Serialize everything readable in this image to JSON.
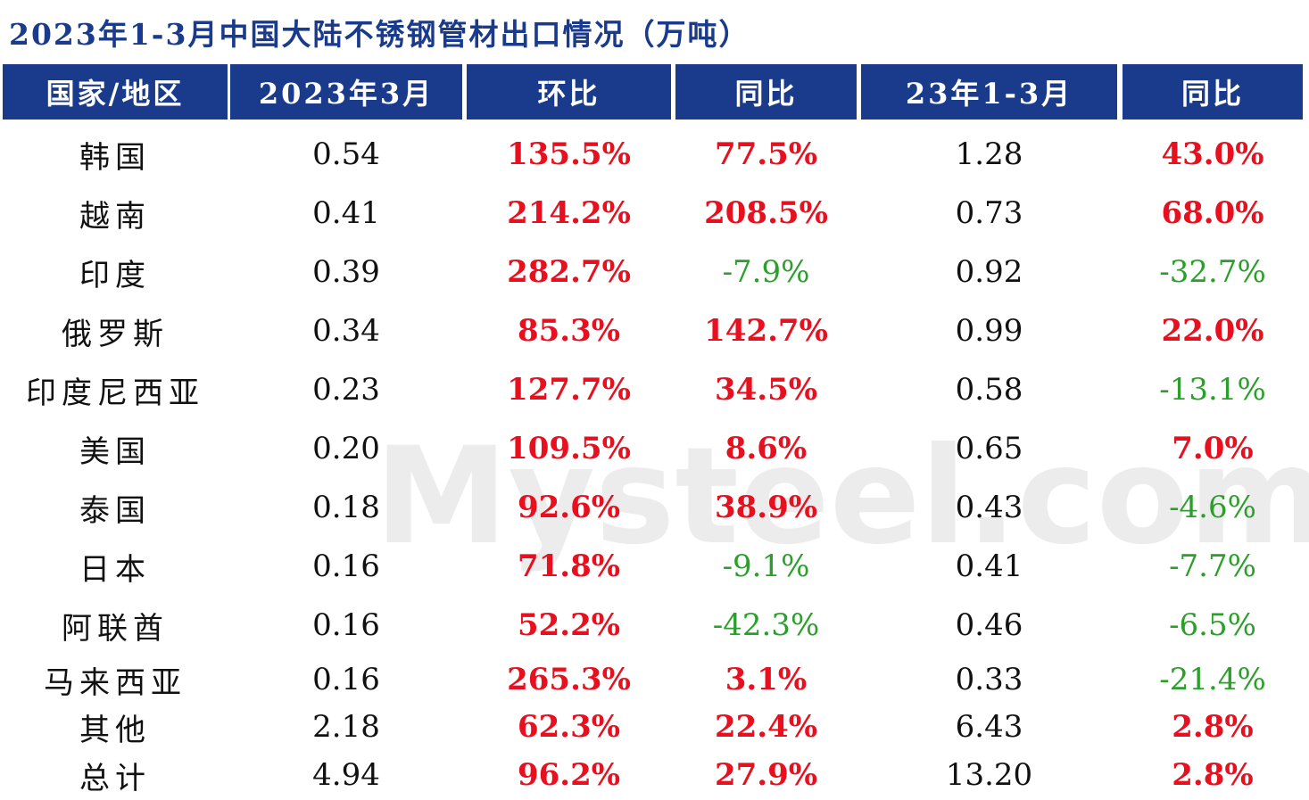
{
  "title": "2023年1-3月中国大陆不锈钢管材出口情况（万吨）",
  "watermark": "Mysteel.com",
  "table": {
    "headers": [
      "国家/地区",
      "2023年3月",
      "环比",
      "同比",
      "23年1-3月",
      "同比"
    ],
    "rows": [
      [
        "韩国",
        "0.54",
        "135.5%",
        "77.5%",
        "1.28",
        "43.0%"
      ],
      [
        "越南",
        "0.41",
        "214.2%",
        "208.5%",
        "0.73",
        "68.0%"
      ],
      [
        "印度",
        "0.39",
        "282.7%",
        "-7.9%",
        "0.92",
        "-32.7%"
      ],
      [
        "俄罗斯",
        "0.34",
        "85.3%",
        "142.7%",
        "0.99",
        "22.0%"
      ],
      [
        "印度尼西亚",
        "0.23",
        "127.7%",
        "34.5%",
        "0.58",
        "-13.1%"
      ],
      [
        "美国",
        "0.20",
        "109.5%",
        "8.6%",
        "0.65",
        "7.0%"
      ],
      [
        "泰国",
        "0.18",
        "92.6%",
        "38.9%",
        "0.43",
        "-4.6%"
      ],
      [
        "日本",
        "0.16",
        "71.8%",
        "-9.1%",
        "0.41",
        "-7.7%"
      ],
      [
        "阿联酋",
        "0.16",
        "52.2%",
        "-42.3%",
        "0.46",
        "-6.5%"
      ],
      [
        "马来西亚",
        "0.16",
        "265.3%",
        "3.1%",
        "0.33",
        "-21.4%"
      ],
      [
        "其他",
        "2.18",
        "62.3%",
        "22.4%",
        "6.43",
        "2.8%"
      ],
      [
        "总计",
        "4.94",
        "96.2%",
        "27.9%",
        "13.20",
        "2.8%"
      ]
    ]
  }
}
